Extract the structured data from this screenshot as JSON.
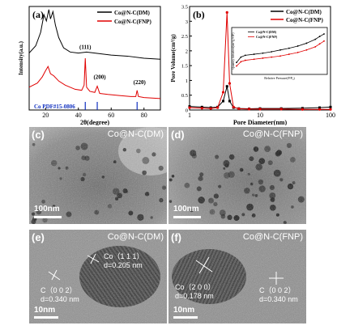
{
  "panels": {
    "a": {
      "label": "(a)",
      "xlabel": "2θ(degree)",
      "ylabel": "Intensity(a.u.)",
      "legend": [
        "Co@N-C(DM)",
        "Co@N-C(FNP)"
      ],
      "peaks": [
        "(111)",
        "(200)",
        "(220)"
      ],
      "reference": "Co PDF#15-0806"
    },
    "b": {
      "label": "(b)",
      "xlabel": "Pore Diameter(nm)",
      "ylabel": "Pore Volume(cm³/g)",
      "legend": [
        "Co@N-C(DM)",
        "Co@N-C(FNP)"
      ],
      "inset": {
        "legend": [
          "Co@N-C(DM)",
          "Co@N-C(FNP)"
        ],
        "xlabel": "Relative Pressure(P/P₀)",
        "ylabel": "Quantity Adsorbed(cm³/g STP)"
      }
    },
    "c": {
      "label": "(c)",
      "title": "Co@N-C(DM)",
      "scale": "100nm"
    },
    "d": {
      "label": "(d)",
      "title": "Co@N-C(FNP)",
      "scale": "100nm"
    },
    "e": {
      "label": "(e)",
      "title": "Co@N-C(DM)",
      "scale": "10nm",
      "ann1_a": "Co（1 1 1）",
      "ann1_b": "d=0.205 nm",
      "ann2_a": "C（0 0 2）",
      "ann2_b": "d=0.340 nm"
    },
    "f": {
      "label": "(f)",
      "title": "Co@N-C(FNP)",
      "scale": "10nm",
      "ann1_a": "Co（2 0 0）",
      "ann1_b": "d=0.178 nm",
      "ann2_a": "C（0 0 2）",
      "ann2_b": "d=0.340 nm"
    }
  },
  "chart_data": [
    {
      "type": "line",
      "panel": "a",
      "xlabel": "2θ(degree)",
      "ylabel": "Intensity(a.u.)",
      "xlim": [
        10,
        90
      ],
      "x_ticks": [
        20,
        40,
        60,
        80
      ],
      "series": [
        {
          "name": "Co@N-C(DM)",
          "color": "#000000",
          "x": [
            10,
            14,
            17,
            19,
            20.5,
            22,
            23,
            24.5,
            26,
            28,
            31,
            35,
            40,
            45,
            50,
            60,
            70,
            80,
            90
          ],
          "y": [
            0.55,
            0.62,
            0.75,
            0.92,
            0.86,
            0.97,
            0.88,
            0.95,
            0.82,
            0.7,
            0.6,
            0.56,
            0.55,
            0.56,
            0.55,
            0.53,
            0.52,
            0.5,
            0.49
          ]
        },
        {
          "name": "Co@N-C(FNP)",
          "color": "#e00000",
          "x": [
            10,
            15,
            18,
            20,
            21.5,
            23,
            25,
            28,
            32,
            38,
            42,
            43.5,
            44.2,
            45,
            47,
            50,
            51.5,
            53,
            58,
            65,
            72,
            75,
            75.8,
            76.6,
            80,
            90
          ],
          "y": [
            0.22,
            0.26,
            0.32,
            0.38,
            0.42,
            0.35,
            0.33,
            0.28,
            0.24,
            0.2,
            0.19,
            0.24,
            0.5,
            0.22,
            0.18,
            0.17,
            0.23,
            0.16,
            0.15,
            0.14,
            0.13,
            0.13,
            0.19,
            0.13,
            0.12,
            0.11
          ]
        }
      ],
      "reference_lines": [
        44.2,
        51.5,
        75.8
      ]
    },
    {
      "type": "line",
      "panel": "b",
      "xscale": "log",
      "xlabel": "Pore Diameter(nm)",
      "ylabel": "Pore Volume(cm³/g)",
      "xlim": [
        1,
        100
      ],
      "x_ticks": [
        1,
        10,
        100
      ],
      "ylim": [
        0,
        3.5
      ],
      "y_ticks": [
        0,
        0.5,
        1.0,
        1.5,
        2.0,
        2.5,
        3.0,
        3.5
      ],
      "series": [
        {
          "name": "Co@N-C(DM)",
          "color": "#000000",
          "x": [
            1,
            1.5,
            2,
            2.5,
            3,
            3.4,
            3.7,
            4.2,
            5,
            7,
            10,
            20,
            40,
            70,
            100
          ],
          "y": [
            0.12,
            0.1,
            0.08,
            0.1,
            0.3,
            0.8,
            0.3,
            0.08,
            0.05,
            0.04,
            0.05,
            0.05,
            0.06,
            0.08,
            0.1
          ]
        },
        {
          "name": "Co@N-C(FNP)",
          "color": "#e00000",
          "x": [
            1,
            1.5,
            2,
            2.5,
            3,
            3.4,
            3.7,
            4.2,
            5,
            7,
            10,
            20,
            40,
            70,
            100
          ],
          "y": [
            0.08,
            0.06,
            0.05,
            0.08,
            0.6,
            3.3,
            0.9,
            0.1,
            0.04,
            0.03,
            0.03,
            0.03,
            0.02,
            0.02,
            0.02
          ]
        }
      ]
    },
    {
      "type": "line",
      "panel": "b-inset",
      "xlabel": "Relative Pressure(P/P₀)",
      "ylabel": "Quantity Adsorbed(cm³/g STP)",
      "xlim": [
        0,
        1
      ],
      "series": [
        {
          "name": "Co@N-C(DM)",
          "color": "#000000",
          "x": [
            0.0,
            0.05,
            0.1,
            0.2,
            0.3,
            0.4,
            0.5,
            0.6,
            0.7,
            0.8,
            0.9,
            0.95,
            1.0
          ],
          "y": [
            0.2,
            0.35,
            0.4,
            0.43,
            0.46,
            0.5,
            0.55,
            0.6,
            0.66,
            0.74,
            0.85,
            0.93,
            1.0
          ]
        },
        {
          "name": "Co@N-C(FNP)",
          "color": "#e00000",
          "x": [
            0.0,
            0.05,
            0.1,
            0.2,
            0.3,
            0.4,
            0.5,
            0.6,
            0.7,
            0.8,
            0.9,
            0.95,
            1.0
          ],
          "y": [
            0.1,
            0.22,
            0.26,
            0.29,
            0.32,
            0.35,
            0.38,
            0.43,
            0.48,
            0.55,
            0.64,
            0.72,
            0.8
          ]
        }
      ]
    }
  ]
}
